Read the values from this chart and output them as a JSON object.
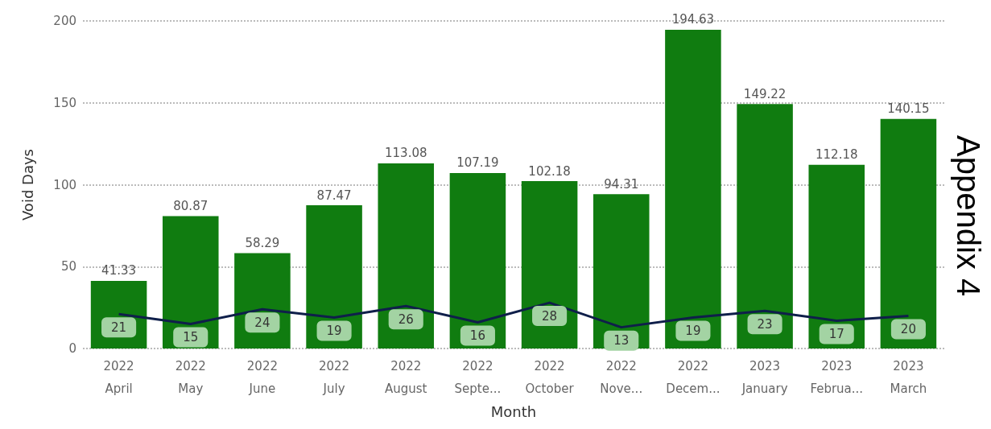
{
  "chart_data": {
    "type": "bar",
    "xlabel": "Month",
    "ylabel": "Void Days",
    "categories": [
      "2022\nApril",
      "2022\nMay",
      "2022\nJune",
      "2022\nJuly",
      "2022\nAugust",
      "2022\nSepte...",
      "2022\nOctober",
      "2022\nNove...",
      "2022\nDecem...",
      "2023\nJanuary",
      "2023\nFebrua...",
      "2023\nMarch"
    ],
    "series": [
      {
        "color": "#107c10",
        "values": [
          41.33,
          80.87,
          58.29,
          87.47,
          113.08,
          107.19,
          102.18,
          94.31,
          194.63,
          149.22,
          112.18,
          140.15
        ]
      },
      {
        "type": "line",
        "color": "#0f1f4a",
        "values": [
          21,
          15,
          24,
          19,
          26,
          16,
          28,
          13,
          19,
          23,
          17,
          20
        ]
      }
    ],
    "ylim": [
      0,
      200
    ],
    "yticks": [
      0,
      50,
      100,
      150,
      200
    ],
    "grid": "y",
    "marker": "none",
    "data_labels": true,
    "annotations": [
      "Appendix 4"
    ]
  }
}
